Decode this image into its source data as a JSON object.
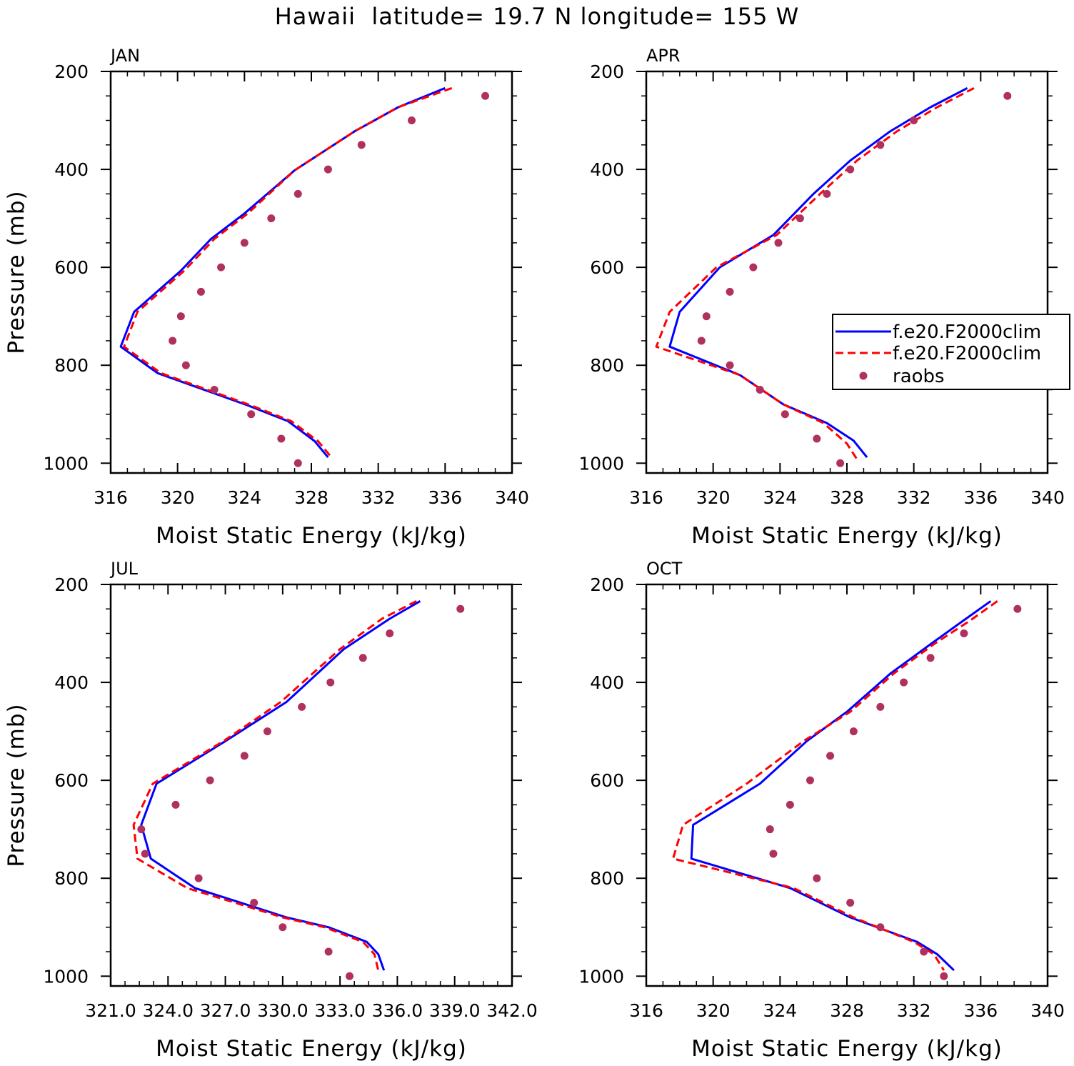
{
  "title": "Hawaii  latitude= 19.7 N longitude= 155 W",
  "legend": {
    "entries": [
      {
        "label": "f.e20.F2000clim",
        "style": "solid",
        "color": "#0000ff"
      },
      {
        "label": "f.e20.F2000clim",
        "style": "dashed",
        "color": "#ff0000"
      },
      {
        "label": "raobs",
        "style": "dot",
        "color": "#b03060"
      }
    ]
  },
  "colors": {
    "model_solid": "#0000ff",
    "model_dashed": "#ff0000",
    "raobs": "#b03060",
    "axes": "#000000"
  },
  "chart_data": [
    {
      "type": "line",
      "title": "JAN",
      "xlabel": "Moist Static Energy (kJ/kg)",
      "ylabel": "Pressure (mb)",
      "xlim": [
        316,
        340
      ],
      "ylim": [
        1020,
        200
      ],
      "xticks": [
        316,
        320,
        324,
        328,
        332,
        336,
        340
      ],
      "xtick_labels": [
        "316",
        "320",
        "324",
        "328",
        "332",
        "336",
        "340"
      ],
      "yticks": [
        200,
        400,
        600,
        800,
        1000
      ],
      "ytick_labels": [
        "200",
        "400",
        "600",
        "800",
        "1000"
      ],
      "series": [
        {
          "name": "f.e20.F2000clim",
          "style": "solid",
          "x": [
            336.0,
            333.2,
            330.6,
            327.0,
            324.0,
            322.0,
            320.2,
            317.4,
            316.6,
            318.8,
            324.2,
            326.6,
            328.2,
            329.0
          ],
          "y": [
            234,
            273,
            322,
            402,
            490,
            542,
            607,
            691,
            762,
            816,
            882,
            914,
            955,
            988
          ]
        },
        {
          "name": "f.e20.F2000clim",
          "style": "dashed",
          "x": [
            336.4,
            333.2,
            330.6,
            327.0,
            324.2,
            322.2,
            320.4,
            317.6,
            316.8,
            319.0,
            324.4,
            326.8,
            328.4,
            329.2
          ],
          "y": [
            234,
            273,
            322,
            402,
            490,
            542,
            607,
            691,
            762,
            816,
            882,
            914,
            955,
            988
          ]
        },
        {
          "name": "raobs",
          "style": "dot",
          "x": [
            338.4,
            334.0,
            331.0,
            329.0,
            327.2,
            325.6,
            324.0,
            322.6,
            321.4,
            320.2,
            319.7,
            320.5,
            322.2,
            324.4,
            326.2,
            327.2
          ],
          "y": [
            250,
            300,
            350,
            400,
            450,
            500,
            550,
            600,
            650,
            700,
            750,
            800,
            850,
            900,
            950,
            1000
          ]
        }
      ]
    },
    {
      "type": "line",
      "title": "APR",
      "xlabel": "Moist Static Energy (kJ/kg)",
      "ylabel": "",
      "xlim": [
        316,
        340
      ],
      "ylim": [
        1020,
        200
      ],
      "xticks": [
        316,
        320,
        324,
        328,
        332,
        336,
        340
      ],
      "xtick_labels": [
        "316",
        "320",
        "324",
        "328",
        "332",
        "336",
        "340"
      ],
      "yticks": [
        200,
        400,
        600,
        800,
        1000
      ],
      "ytick_labels": [
        "200",
        "400",
        "600",
        "800",
        "1000"
      ],
      "series": [
        {
          "name": "f.e20.F2000clim",
          "style": "solid",
          "x": [
            335.2,
            333.0,
            330.6,
            328.2,
            326.0,
            323.6,
            320.4,
            318.0,
            317.4,
            321.6,
            324.2,
            326.8,
            328.4,
            329.2
          ],
          "y": [
            234,
            273,
            322,
            382,
            450,
            534,
            600,
            691,
            762,
            820,
            880,
            918,
            954,
            988
          ]
        },
        {
          "name": "f.e20.F2000clim",
          "style": "dashed",
          "x": [
            335.6,
            333.4,
            331.0,
            328.6,
            326.4,
            323.8,
            320.2,
            317.4,
            316.6,
            321.6,
            324.2,
            326.6,
            328.0,
            328.6
          ],
          "y": [
            234,
            273,
            322,
            382,
            450,
            534,
            600,
            691,
            762,
            820,
            880,
            918,
            960,
            992
          ]
        },
        {
          "name": "raobs",
          "style": "dot",
          "x": [
            337.6,
            332.0,
            330.0,
            328.2,
            326.8,
            325.2,
            323.9,
            322.4,
            321.0,
            319.6,
            319.3,
            321.0,
            322.8,
            324.3,
            326.2,
            327.6
          ],
          "y": [
            250,
            300,
            350,
            400,
            450,
            500,
            550,
            600,
            650,
            700,
            750,
            800,
            850,
            900,
            950,
            1000
          ]
        }
      ]
    },
    {
      "type": "line",
      "title": "JUL",
      "xlabel": "Moist Static Energy (kJ/kg)",
      "ylabel": "Pressure (mb)",
      "xlim": [
        321,
        342
      ],
      "ylim": [
        1020,
        200
      ],
      "xticks": [
        321,
        324,
        327,
        330,
        333,
        336,
        339,
        342
      ],
      "xtick_labels": [
        "321.0",
        "324.0",
        "327.0",
        "330.0",
        "333.0",
        "336.0",
        "339.0",
        "342.0"
      ],
      "yticks": [
        200,
        400,
        600,
        800,
        1000
      ],
      "ytick_labels": [
        "200",
        "400",
        "600",
        "800",
        "1000"
      ],
      "series": [
        {
          "name": "f.e20.F2000clim",
          "style": "solid",
          "x": [
            337.2,
            335.6,
            333.2,
            330.2,
            327.0,
            323.4,
            322.6,
            323.1,
            325.4,
            330.2,
            332.4,
            334.4,
            335.0,
            335.3
          ],
          "y": [
            234,
            270,
            332,
            440,
            520,
            607,
            691,
            760,
            820,
            880,
            900,
            930,
            955,
            988
          ]
        },
        {
          "name": "f.e20.F2000clim",
          "style": "dashed",
          "x": [
            337.0,
            335.2,
            333.0,
            329.9,
            326.9,
            323.2,
            322.2,
            322.4,
            325.0,
            330.0,
            332.2,
            334.2,
            334.8,
            335.0
          ],
          "y": [
            234,
            270,
            332,
            440,
            520,
            607,
            691,
            760,
            820,
            880,
            900,
            930,
            955,
            988
          ]
        },
        {
          "name": "raobs",
          "style": "dot",
          "x": [
            339.3,
            335.6,
            334.2,
            332.5,
            331.0,
            329.2,
            328.0,
            326.2,
            324.4,
            322.6,
            322.8,
            325.6,
            328.5,
            330.0,
            332.4,
            333.5
          ],
          "y": [
            250,
            300,
            350,
            400,
            450,
            500,
            550,
            600,
            650,
            700,
            750,
            800,
            850,
            900,
            950,
            1000
          ]
        }
      ]
    },
    {
      "type": "line",
      "title": "OCT",
      "xlabel": "Moist Static Energy (kJ/kg)",
      "ylabel": "",
      "xlim": [
        316,
        340
      ],
      "ylim": [
        1020,
        200
      ],
      "xticks": [
        316,
        320,
        324,
        328,
        332,
        336,
        340
      ],
      "xtick_labels": [
        "316",
        "320",
        "324",
        "328",
        "332",
        "336",
        "340"
      ],
      "yticks": [
        200,
        400,
        600,
        800,
        1000
      ],
      "ytick_labels": [
        "200",
        "400",
        "600",
        "800",
        "1000"
      ],
      "series": [
        {
          "name": "f.e20.F2000clim",
          "style": "solid",
          "x": [
            336.6,
            335.0,
            333.0,
            330.6,
            328.0,
            325.6,
            322.8,
            318.8,
            318.7,
            324.6,
            328.2,
            332.2,
            333.4,
            334.4
          ],
          "y": [
            234,
            273,
            322,
            382,
            460,
            520,
            607,
            691,
            760,
            820,
            880,
            930,
            955,
            988
          ]
        },
        {
          "name": "f.e20.F2000clim",
          "style": "dashed",
          "x": [
            337.0,
            335.4,
            333.2,
            330.8,
            328.2,
            325.4,
            322.0,
            318.2,
            317.6,
            324.8,
            328.4,
            332.0,
            333.2,
            333.8
          ],
          "y": [
            234,
            273,
            322,
            382,
            460,
            520,
            607,
            691,
            760,
            820,
            880,
            930,
            955,
            988
          ]
        },
        {
          "name": "raobs",
          "style": "dot",
          "x": [
            338.2,
            335.0,
            333.0,
            331.4,
            330.0,
            328.4,
            327.0,
            325.8,
            324.6,
            323.4,
            323.6,
            326.2,
            328.2,
            330.0,
            332.6,
            333.8
          ],
          "y": [
            250,
            300,
            350,
            400,
            450,
            500,
            550,
            600,
            650,
            700,
            750,
            800,
            850,
            900,
            950,
            1000
          ]
        }
      ]
    }
  ]
}
